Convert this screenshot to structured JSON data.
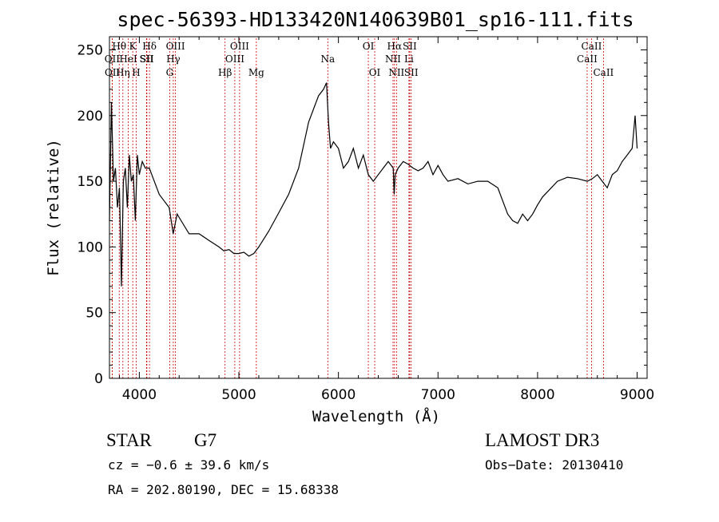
{
  "figure": {
    "title": "spec-56393-HD133420N140639B01_sp16-111.fits",
    "object_class": "STAR",
    "subclass": "G7",
    "survey": "LAMOST DR3",
    "cz": "cz = −0.6 ± 39.6 km/s",
    "coords": "RA = 202.80190, DEC =  15.68338",
    "obs_date": "Obs−Date: 20130410"
  },
  "chart_data": {
    "type": "line",
    "title": "spec-56393-HD133420N140639B01_sp16-111.fits",
    "xlabel": "Wavelength (Å)",
    "ylabel": "Flux (relative)",
    "xlim": [
      3700,
      9100
    ],
    "ylim": [
      0,
      260
    ],
    "x_ticks": [
      4000,
      5000,
      6000,
      7000,
      8000,
      9000
    ],
    "y_ticks": [
      0,
      50,
      100,
      150,
      200,
      250
    ],
    "grid": false,
    "line_color": "#000000",
    "marker_color": "#cc0000",
    "series": [
      {
        "x": [
          3700,
          3720,
          3740,
          3760,
          3780,
          3800,
          3820,
          3840,
          3860,
          3880,
          3900,
          3920,
          3940,
          3960,
          3980,
          4000,
          4030,
          4060,
          4100,
          4150,
          4200,
          4250,
          4300,
          4340,
          4380,
          4420,
          4500,
          4600,
          4700,
          4800,
          4850,
          4900,
          4950,
          5000,
          5050,
          5100,
          5150,
          5200,
          5300,
          5400,
          5500,
          5600,
          5700,
          5750,
          5800,
          5850,
          5880,
          5900,
          5920,
          5950,
          6000,
          6050,
          6100,
          6150,
          6200,
          6250,
          6300,
          6350,
          6400,
          6450,
          6500,
          6550,
          6560,
          6570,
          6600,
          6650,
          6700,
          6750,
          6800,
          6850,
          6900,
          6950,
          7000,
          7050,
          7100,
          7200,
          7300,
          7400,
          7500,
          7600,
          7700,
          7750,
          7800,
          7850,
          7900,
          7950,
          8000,
          8050,
          8100,
          8200,
          8300,
          8400,
          8500,
          8550,
          8600,
          8650,
          8700,
          8750,
          8800,
          8850,
          8900,
          8950,
          8980,
          9000
        ],
        "y": [
          120,
          210,
          150,
          160,
          130,
          145,
          70,
          150,
          160,
          130,
          170,
          150,
          155,
          120,
          170,
          155,
          165,
          160,
          160,
          150,
          140,
          135,
          130,
          110,
          125,
          120,
          110,
          110,
          105,
          100,
          97,
          98,
          95,
          95,
          96,
          93,
          95,
          100,
          112,
          126,
          140,
          160,
          195,
          205,
          215,
          220,
          225,
          195,
          175,
          180,
          175,
          160,
          165,
          175,
          160,
          170,
          155,
          150,
          155,
          160,
          165,
          160,
          140,
          155,
          160,
          165,
          163,
          160,
          158,
          160,
          165,
          155,
          162,
          155,
          150,
          152,
          148,
          150,
          150,
          145,
          125,
          120,
          118,
          125,
          120,
          125,
          132,
          138,
          142,
          150,
          153,
          152,
          150,
          152,
          155,
          150,
          145,
          155,
          158,
          165,
          170,
          175,
          200,
          175
        ]
      }
    ],
    "line_markers": [
      {
        "label": "Hθ",
        "w": 3798,
        "row": 1
      },
      {
        "label": "OII",
        "w": 3727,
        "row": 2
      },
      {
        "label": "OII",
        "w": 3729,
        "row": 3
      },
      {
        "label": "Hη",
        "w": 3835,
        "row": 3
      },
      {
        "label": "HeI",
        "w": 3889,
        "row": 2
      },
      {
        "label": "K",
        "w": 3934,
        "row": 1
      },
      {
        "label": "H",
        "w": 3969,
        "row": 3
      },
      {
        "label": "SII",
        "w": 4072,
        "row": 2
      },
      {
        "label": "Hδ",
        "w": 4102,
        "row": 1
      },
      {
        "label": "SII",
        "w": 4076,
        "row": 2
      },
      {
        "label": "OIII",
        "w": 4363,
        "row": 1
      },
      {
        "label": "Hγ",
        "w": 4341,
        "row": 2
      },
      {
        "label": "G",
        "w": 4305,
        "row": 3
      },
      {
        "label": "Hβ",
        "w": 4861,
        "row": 3
      },
      {
        "label": "OIII",
        "w": 5007,
        "row": 1
      },
      {
        "label": "OIII",
        "w": 4959,
        "row": 2
      },
      {
        "label": "Mg",
        "w": 5175,
        "row": 3
      },
      {
        "label": "Na",
        "w": 5893,
        "row": 2
      },
      {
        "label": "OI",
        "w": 6300,
        "row": 1
      },
      {
        "label": "OI",
        "w": 6364,
        "row": 3
      },
      {
        "label": "Hα",
        "w": 6563,
        "row": 1
      },
      {
        "label": "NII",
        "w": 6548,
        "row": 2
      },
      {
        "label": "NII",
        "w": 6583,
        "row": 3
      },
      {
        "label": "SII",
        "w": 6716,
        "row": 1
      },
      {
        "label": "Li",
        "w": 6708,
        "row": 2
      },
      {
        "label": "SII",
        "w": 6731,
        "row": 3
      },
      {
        "label": "CaII",
        "w": 8542,
        "row": 1
      },
      {
        "label": "CaII",
        "w": 8498,
        "row": 2
      },
      {
        "label": "CaII",
        "w": 8662,
        "row": 3
      }
    ]
  }
}
